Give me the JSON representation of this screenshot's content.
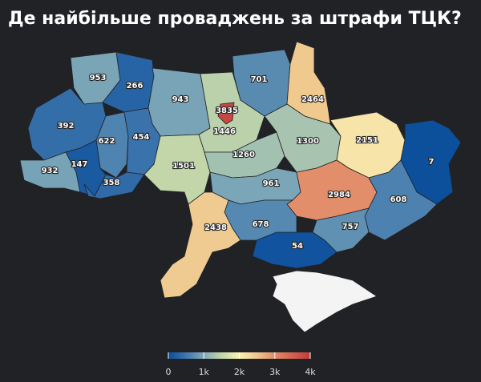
{
  "title": "Де найбільше проваджень за штрафи ТЦК?",
  "region_values": [
    953,
    266,
    943,
    1446,
    701,
    2464,
    392,
    622,
    454,
    932,
    147,
    358,
    1501,
    1260,
    1300,
    2151,
    7,
    961,
    2984,
    608,
    757,
    54,
    678,
    2438,
    3835
  ],
  "color_scale": {
    "range": [
      0,
      4000
    ],
    "colors": [
      "#0b4f9c",
      "#3f76ad",
      "#80aab8",
      "#c2d6aa",
      "#faf1b5",
      "#efc68c",
      "#e28c69",
      "#d2624f",
      "#c23a3c"
    ],
    "ticks": [
      0,
      {
        "value": 1000,
        "label": "1k"
      },
      {
        "value": 2000,
        "label": "2k"
      },
      {
        "value": 3000,
        "label": "3k"
      },
      {
        "value": 4000,
        "label": "4k"
      }
    ]
  }
}
